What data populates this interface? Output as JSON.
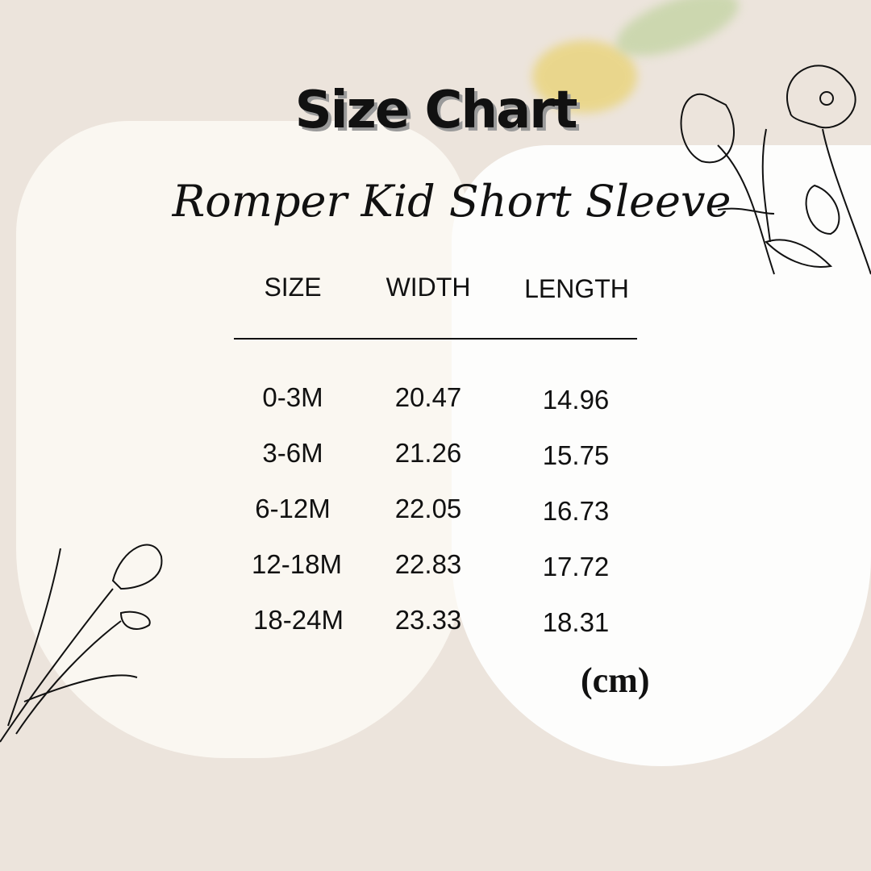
{
  "title": "Size Chart",
  "subtitle": "Romper Kid Short Sleeve",
  "table": {
    "headers": [
      "SIZE",
      "WIDTH",
      "LENGTH"
    ],
    "rows": [
      [
        "0-3M",
        "20.47",
        "14.96"
      ],
      [
        "3-6M",
        "21.26",
        "15.75"
      ],
      [
        "6-12M",
        "22.05",
        "16.73"
      ],
      [
        "12-18M",
        "22.83",
        "17.72"
      ],
      [
        "18-24M",
        "23.33",
        "18.31"
      ]
    ],
    "unit": "(cm)"
  }
}
